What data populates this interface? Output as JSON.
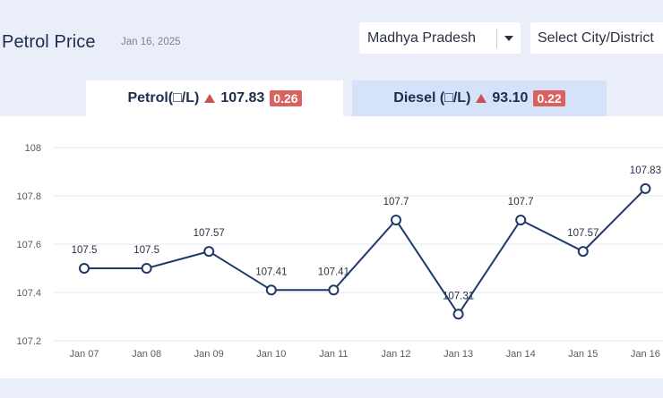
{
  "header": {
    "title": "Petrol Price",
    "date": "Jan 16, 2025"
  },
  "filters": {
    "state_value": "Madhya Pradesh",
    "city_placeholder": "Select City/District"
  },
  "tabs": [
    {
      "fuel_label": "Petrol(□/L)",
      "price": "107.83",
      "change": "0.26",
      "trend": "up",
      "active": true
    },
    {
      "fuel_label": "Diesel (□/L)",
      "price": "93.10",
      "change": "0.22",
      "trend": "up",
      "active": false
    }
  ],
  "colors": {
    "line": "#1f3a68",
    "up_arrow": "#c9534f",
    "badge": "#d9625e",
    "active_tab": "#ffffff",
    "inactive_tab": "#d5e2fa"
  },
  "chart_data": {
    "type": "line",
    "categories": [
      "Jan 07",
      "Jan 08",
      "Jan 09",
      "Jan 10",
      "Jan 11",
      "Jan 12",
      "Jan 13",
      "Jan 14",
      "Jan 15",
      "Jan 16"
    ],
    "values": [
      107.5,
      107.5,
      107.57,
      107.41,
      107.41,
      107.7,
      107.31,
      107.7,
      107.57,
      107.83
    ],
    "data_labels": [
      "107.5",
      "107.5",
      "107.57",
      "107.41",
      "107.41",
      "107.7",
      "107.31",
      "107.7",
      "107.57",
      "107.83"
    ],
    "y_ticks": [
      "107.2",
      "107.4",
      "107.6",
      "107.8",
      "108"
    ],
    "ylim": [
      107.2,
      108
    ],
    "grid": true,
    "legend": "none"
  }
}
